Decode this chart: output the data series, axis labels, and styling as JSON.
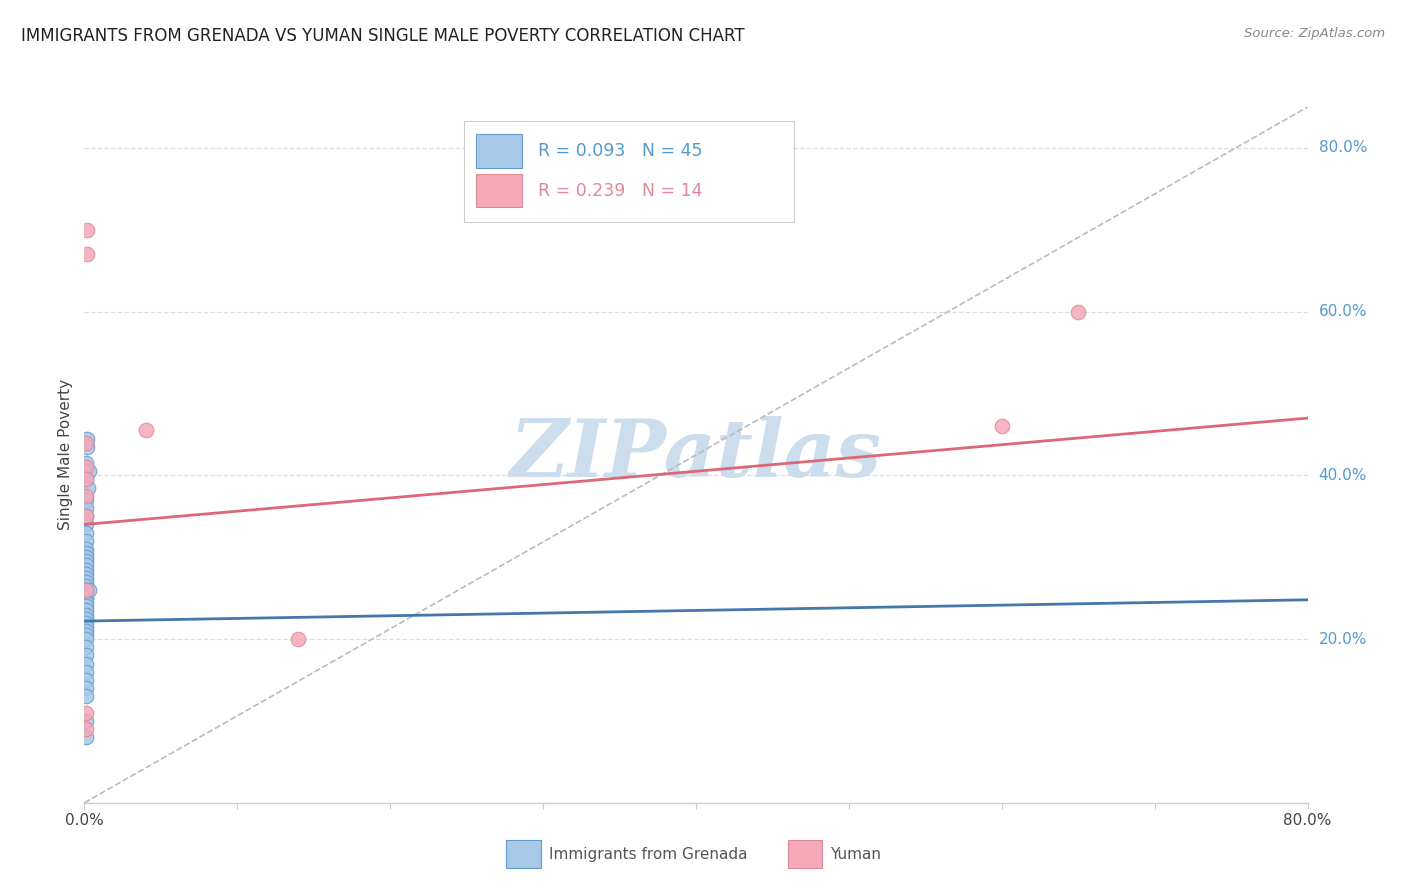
{
  "title": "IMMIGRANTS FROM GRENADA VS YUMAN SINGLE MALE POVERTY CORRELATION CHART",
  "source": "Source: ZipAtlas.com",
  "ylabel": "Single Male Poverty",
  "legend_label_blue": "Immigrants from Grenada",
  "legend_label_pink": "Yuman",
  "blue_scatter_color": "#a8c8e8",
  "pink_scatter_color": "#f4a8b8",
  "blue_edge_color": "#6699cc",
  "pink_edge_color": "#e08898",
  "blue_line_color": "#4477aa",
  "pink_line_color": "#dd6677",
  "diag_line_color": "#bbbbbb",
  "watermark_color": "#ccdded",
  "watermark_text": "ZIPatlas",
  "grid_color": "#dddddd",
  "ytick_color": "#5599cc",
  "title_color": "#222222",
  "source_color": "#888888",
  "blue_r": "R = 0.093",
  "blue_n": "N = 45",
  "pink_r": "R = 0.239",
  "pink_n": "N = 14",
  "xmin": 0.0,
  "xmax": 0.8,
  "ymin": 0.0,
  "ymax": 0.85,
  "blue_x": [
    0.0018,
    0.0015,
    0.0012,
    0.003,
    0.001,
    0.0022,
    0.0008,
    0.001,
    0.0009,
    0.0011,
    0.0013,
    0.001,
    0.0011,
    0.0009,
    0.001,
    0.0008,
    0.001,
    0.0009,
    0.0008,
    0.001,
    0.0009,
    0.0008,
    0.001,
    0.0009,
    0.0008,
    0.001,
    0.0009,
    0.0008,
    0.001,
    0.0009,
    0.0008,
    0.001,
    0.0009,
    0.0008,
    0.001,
    0.0032,
    0.0009,
    0.0008,
    0.001,
    0.0009,
    0.0008,
    0.001,
    0.0009,
    0.0008,
    0.001
  ],
  "blue_y": [
    0.445,
    0.435,
    0.415,
    0.405,
    0.395,
    0.385,
    0.37,
    0.36,
    0.35,
    0.34,
    0.33,
    0.32,
    0.31,
    0.305,
    0.3,
    0.295,
    0.29,
    0.285,
    0.28,
    0.275,
    0.27,
    0.265,
    0.26,
    0.255,
    0.25,
    0.245,
    0.24,
    0.235,
    0.23,
    0.225,
    0.22,
    0.215,
    0.21,
    0.205,
    0.2,
    0.26,
    0.19,
    0.18,
    0.17,
    0.16,
    0.15,
    0.14,
    0.13,
    0.1,
    0.08
  ],
  "pink_x": [
    0.002,
    0.0015,
    0.001,
    0.0012,
    0.001,
    0.0012,
    0.04,
    0.001,
    0.001,
    0.001,
    0.14,
    0.6,
    0.65,
    0.001
  ],
  "pink_y": [
    0.7,
    0.67,
    0.44,
    0.41,
    0.395,
    0.375,
    0.455,
    0.26,
    0.11,
    0.09,
    0.2,
    0.46,
    0.6,
    0.35
  ],
  "blue_line_x0": 0.0,
  "blue_line_x1": 0.8,
  "blue_line_y0": 0.222,
  "blue_line_y1": 0.248,
  "pink_line_x0": 0.0,
  "pink_line_x1": 0.8,
  "pink_line_y0": 0.34,
  "pink_line_y1": 0.47
}
